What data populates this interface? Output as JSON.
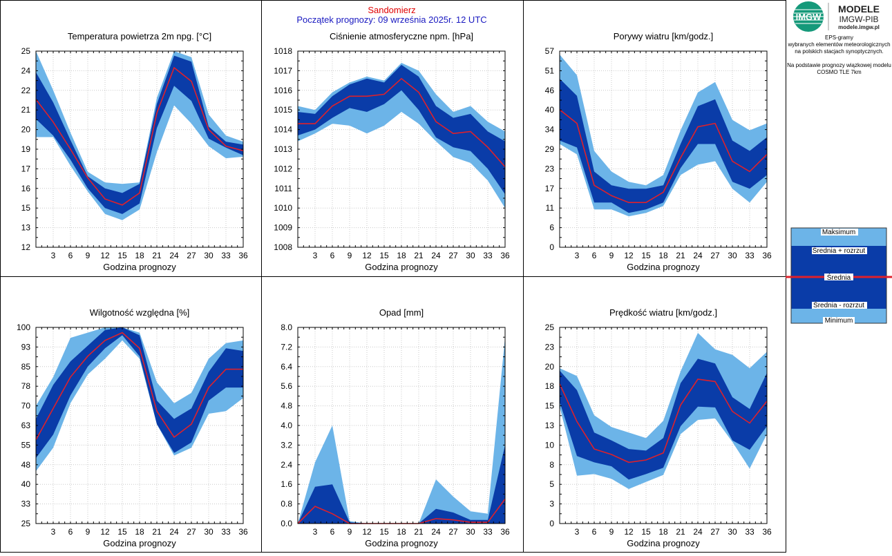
{
  "header": {
    "station": "Sandomierz",
    "forecast_start": "Początek prognozy: 09 września 2025r. 12 UTC"
  },
  "brand": {
    "logo_text": "IMGW",
    "title": "MODELE",
    "subtitle": "IMGW-PIB",
    "url": "modele.imgw.pl"
  },
  "info": {
    "line1": "EPS-gramy\nwybranych elementów meteorologicznych\nna polskich stacjach  synoptycznych.",
    "line2": "Na podstawie prognozy wiązkowej modelu\nCOSMO TLE 7km"
  },
  "legend": {
    "items": [
      "Maksimum",
      "Średnia + rozrzut",
      "Średnia",
      "Średnia - rozrzut",
      "Minimum"
    ]
  },
  "colors": {
    "outer_band": "#6cb4e8",
    "inner_band": "#0a3ca8",
    "mean_line": "#e0202a",
    "station_title": "#e00000",
    "start_title": "#1818c0"
  },
  "chart_data": [
    {
      "type": "area",
      "title": "Temperatura powietrza 2m npg. [°C]",
      "xlabel": "Godzina prognozy",
      "x": [
        0,
        3,
        6,
        9,
        12,
        15,
        18,
        21,
        24,
        27,
        30,
        33,
        36
      ],
      "xticks": [
        "3",
        "6",
        "9",
        "12",
        "15",
        "18",
        "21",
        "24",
        "27",
        "30",
        "33",
        "36"
      ],
      "yticks": [
        "12",
        "13",
        "15",
        "16",
        "17",
        "19",
        "20",
        "21",
        "22",
        "24",
        "25"
      ],
      "ylim": [
        12,
        25
      ],
      "max": [
        25.0,
        22.4,
        19.6,
        17.0,
        16.3,
        16.2,
        16.3,
        21.9,
        25.0,
        24.6,
        20.8,
        19.4,
        19.0
      ],
      "mean_plus": [
        23.6,
        21.6,
        19.1,
        16.7,
        15.9,
        15.6,
        16.2,
        21.5,
        24.7,
        24.3,
        20.0,
        19.0,
        18.8
      ],
      "mean": [
        21.8,
        20.3,
        18.5,
        16.6,
        15.2,
        14.8,
        15.6,
        20.9,
        23.9,
        23.0,
        19.8,
        18.7,
        18.4
      ],
      "mean_minus": [
        20.5,
        19.4,
        17.8,
        15.9,
        14.6,
        14.2,
        14.9,
        19.9,
        22.7,
        21.7,
        19.2,
        18.6,
        18.1
      ],
      "min": [
        19.3,
        19.3,
        17.4,
        15.7,
        14.2,
        13.8,
        14.5,
        18.3,
        21.4,
        20.2,
        18.7,
        17.9,
        18.0
      ]
    },
    {
      "type": "area",
      "title": "Ciśnienie atmosferyczne npm. [hPa]",
      "xlabel": "Godzina prognozy",
      "x": [
        0,
        3,
        6,
        9,
        12,
        15,
        18,
        21,
        24,
        27,
        30,
        33,
        36
      ],
      "xticks": [
        "3",
        "6",
        "9",
        "12",
        "15",
        "18",
        "21",
        "24",
        "27",
        "30",
        "33",
        "36"
      ],
      "yticks": [
        "1008",
        "1009",
        "1010",
        "1011",
        "1012",
        "1013",
        "1014",
        "1015",
        "1016",
        "1017",
        "1018"
      ],
      "ylim": [
        1008,
        1018
      ],
      "max": [
        1015.2,
        1015.0,
        1015.9,
        1016.4,
        1016.7,
        1016.5,
        1017.4,
        1017.0,
        1015.8,
        1014.9,
        1015.2,
        1014.4,
        1013.9
      ],
      "mean_plus": [
        1014.9,
        1014.8,
        1015.7,
        1016.3,
        1016.6,
        1016.4,
        1017.3,
        1016.7,
        1015.2,
        1014.6,
        1014.8,
        1013.9,
        1013.4
      ],
      "mean": [
        1014.3,
        1014.3,
        1015.2,
        1015.7,
        1015.7,
        1015.8,
        1016.6,
        1015.9,
        1014.4,
        1013.8,
        1013.9,
        1013.1,
        1012.1
      ],
      "mean_minus": [
        1013.7,
        1014.0,
        1014.6,
        1015.1,
        1014.9,
        1015.3,
        1016.0,
        1015.0,
        1013.6,
        1013.1,
        1012.9,
        1012.0,
        1010.7
      ],
      "min": [
        1013.4,
        1013.8,
        1014.3,
        1014.2,
        1013.8,
        1014.2,
        1014.9,
        1014.3,
        1013.4,
        1012.6,
        1012.3,
        1011.4,
        1010.0
      ]
    },
    {
      "type": "area",
      "title": "Porywy wiatru [km/godz.]",
      "xlabel": "Godzina prognozy",
      "x": [
        0,
        3,
        6,
        9,
        12,
        15,
        18,
        21,
        24,
        27,
        30,
        33,
        36
      ],
      "xticks": [
        "3",
        "6",
        "9",
        "12",
        "15",
        "18",
        "21",
        "24",
        "27",
        "30",
        "33",
        "36"
      ],
      "yticks": [
        "0",
        "6",
        "11",
        "17",
        "23",
        "29",
        "34",
        "40",
        "46",
        "51",
        "57"
      ],
      "ylim": [
        0,
        57
      ],
      "max": [
        56,
        50,
        28,
        22,
        19,
        18,
        21,
        34,
        45,
        48,
        37,
        34,
        36
      ],
      "mean_plus": [
        49,
        44,
        22,
        18,
        17,
        17,
        18,
        30,
        41,
        43,
        31,
        28,
        32
      ],
      "mean": [
        40,
        36,
        18,
        15,
        13,
        13,
        16,
        26,
        35,
        36,
        25,
        22,
        27
      ],
      "mean_minus": [
        31,
        29,
        13,
        13,
        10,
        11,
        13,
        23,
        30,
        30,
        19,
        17,
        21
      ],
      "min": [
        30,
        27,
        11,
        11,
        9,
        10,
        12,
        21,
        24,
        25,
        17,
        13,
        19
      ]
    },
    {
      "type": "area",
      "title": "Wilgotność względna [%]",
      "xlabel": "Godzina prognozy",
      "x": [
        0,
        3,
        6,
        9,
        12,
        15,
        18,
        21,
        24,
        27,
        30,
        33,
        36
      ],
      "xticks": [
        "3",
        "6",
        "9",
        "12",
        "15",
        "18",
        "21",
        "24",
        "27",
        "30",
        "33",
        "36"
      ],
      "yticks": [
        "25",
        "33",
        "40",
        "48",
        "55",
        "63",
        "70",
        "78",
        "85",
        "93",
        "100"
      ],
      "ylim": [
        25,
        100
      ],
      "max": [
        70,
        81,
        96,
        98,
        100,
        100,
        98,
        79,
        71,
        75,
        88,
        94,
        95
      ],
      "mean_plus": [
        65,
        78,
        87,
        93,
        99,
        100,
        97,
        72,
        65,
        69,
        83,
        92,
        91
      ],
      "mean": [
        57,
        69,
        81,
        89,
        95,
        98,
        92,
        68,
        58,
        63,
        77,
        84,
        84
      ],
      "mean_minus": [
        50,
        59,
        74,
        85,
        92,
        97,
        89,
        63,
        52,
        56,
        72,
        77,
        77
      ],
      "min": [
        45,
        54,
        71,
        82,
        88,
        95,
        88,
        63,
        51,
        54,
        67,
        68,
        73
      ]
    },
    {
      "type": "area",
      "title": "Opad [mm]",
      "xlabel": "Godzina prognozy",
      "x": [
        0,
        3,
        6,
        9,
        12,
        15,
        18,
        21,
        24,
        27,
        30,
        33,
        36
      ],
      "xticks": [
        "3",
        "6",
        "9",
        "12",
        "15",
        "18",
        "21",
        "24",
        "27",
        "30",
        "33",
        "36"
      ],
      "yticks": [
        "0.0",
        "0.8",
        "1.6",
        "2.4",
        "3.2",
        "4.0",
        "4.8",
        "5.6",
        "6.4",
        "7.2",
        "8.0"
      ],
      "ylim": [
        0,
        8
      ],
      "max": [
        0.0,
        2.5,
        4.0,
        0.1,
        0.0,
        0.0,
        0.0,
        0.0,
        1.8,
        1.1,
        0.5,
        0.4,
        7.6
      ],
      "mean_plus": [
        0.0,
        1.5,
        1.6,
        0.05,
        0.0,
        0.0,
        0.0,
        0.0,
        0.6,
        0.45,
        0.15,
        0.15,
        3.2
      ],
      "mean": [
        0.0,
        0.7,
        0.4,
        0.0,
        0.0,
        0.0,
        0.0,
        0.0,
        0.2,
        0.15,
        0.05,
        0.05,
        1.0
      ],
      "mean_minus": [
        0.0,
        0.0,
        0.0,
        0.0,
        0.0,
        0.0,
        0.0,
        0.0,
        0.0,
        0.0,
        0.0,
        0.0,
        0.0
      ],
      "min": [
        0.0,
        0.0,
        0.0,
        0.0,
        0.0,
        0.0,
        0.0,
        0.0,
        0.0,
        0.0,
        0.0,
        0.0,
        0.0
      ]
    },
    {
      "type": "area",
      "title": "Prędkość wiatru [km/godz.]",
      "xlabel": "Godzina prognozy",
      "x": [
        0,
        3,
        6,
        9,
        12,
        15,
        18,
        21,
        24,
        27,
        30,
        33,
        36
      ],
      "xticks": [
        "3",
        "6",
        "9",
        "12",
        "15",
        "18",
        "21",
        "24",
        "27",
        "30",
        "33",
        "36"
      ],
      "yticks": [
        "0",
        "3",
        "5",
        "8",
        "10",
        "13",
        "15",
        "18",
        "20",
        "23",
        "25"
      ],
      "ylim": [
        0,
        25
      ],
      "max": [
        19.8,
        18.8,
        13.8,
        12.3,
        11.6,
        10.9,
        13.1,
        19.4,
        24.3,
        22.2,
        21.5,
        19.8,
        21.9
      ],
      "mean_plus": [
        19.5,
        17.0,
        11.6,
        10.6,
        9.5,
        9.3,
        10.9,
        17.9,
        21.0,
        20.4,
        16.1,
        14.6,
        19.2
      ],
      "mean": [
        17.8,
        13.0,
        9.5,
        8.8,
        7.8,
        8.1,
        9.0,
        15.1,
        18.4,
        18.1,
        14.3,
        12.8,
        15.6
      ],
      "mean_minus": [
        15.5,
        8.6,
        7.8,
        7.3,
        5.6,
        6.3,
        7.1,
        12.4,
        14.9,
        14.8,
        10.6,
        9.4,
        12.4
      ],
      "min": [
        14.9,
        6.1,
        6.3,
        5.7,
        4.4,
        5.3,
        6.2,
        11.4,
        13.2,
        13.4,
        10.4,
        7.0,
        11.4
      ]
    }
  ]
}
